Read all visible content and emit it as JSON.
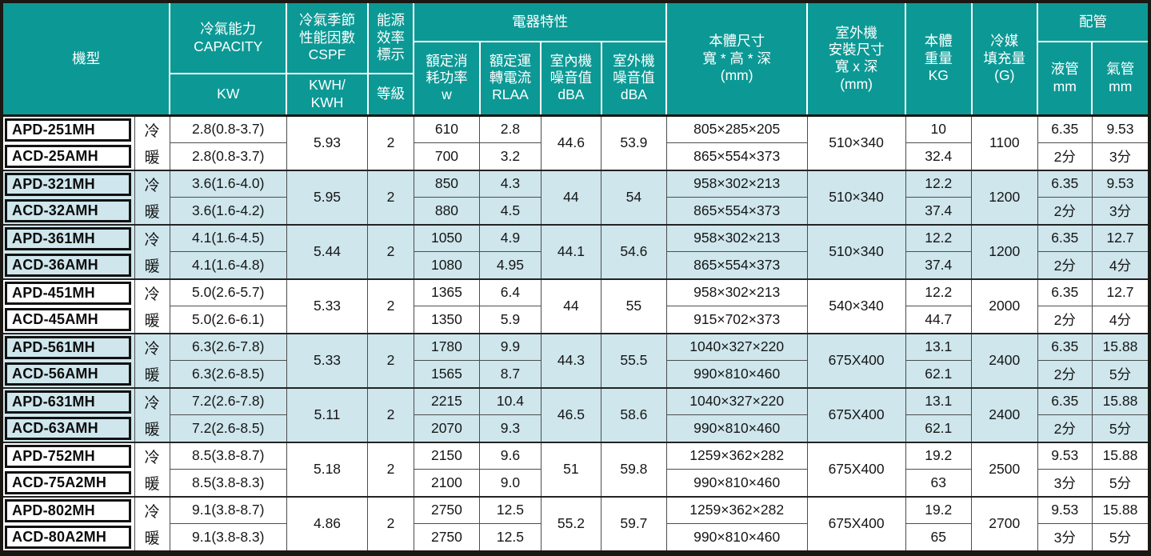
{
  "colors": {
    "header_bg": "#0c9995",
    "row_alt_bg": "#cee6ec",
    "outer_border": "#1b1713"
  },
  "header": {
    "model": "機型",
    "capacity": "冷氣能力\nCAPACITY",
    "capacity_unit": "KW",
    "cspf": "冷氣季節\n性能因數\nCSPF",
    "cspf_unit": "KWH/\nKWH",
    "energy": "能源\n效率\n標示",
    "energy_unit": "等級",
    "electrical": "電器特性",
    "power": "額定消\n耗功率\nw",
    "current": "額定運\n轉電流\nRLAA",
    "indoor_noise": "室內機\n噪音值\ndBA",
    "outdoor_noise": "室外機\n噪音值\ndBA",
    "body_size": "本體尺寸\n寬 * 高 * 深\n(mm)",
    "install_size": "室外機\n安裝尺寸\n寬 x 深\n(mm)",
    "weight": "本體\n重量\nKG",
    "refrigerant": "冷媒\n填充量\n(G)",
    "piping": "配管",
    "liquid": "液管\nmm",
    "gas": "氣管\nmm"
  },
  "groups": [
    {
      "shaded": false,
      "cspf": "5.93",
      "grade": "2",
      "indoor_noise": "44.6",
      "outdoor_noise": "53.9",
      "install_size": "510×340",
      "refrigerant": "1100",
      "rows": [
        {
          "model": "APD-251MH",
          "mode": "冷",
          "capacity": "2.8(0.8-3.7)",
          "power": "610",
          "current": "2.8",
          "size": "805×285×205",
          "weight": "10",
          "liquid": "6.35",
          "gas": "9.53"
        },
        {
          "model": "ACD-25AMH",
          "mode": "暖",
          "capacity": "2.8(0.8-3.7)",
          "power": "700",
          "current": "3.2",
          "size": "865×554×373",
          "weight": "32.4",
          "liquid": "2分",
          "gas": "3分"
        }
      ]
    },
    {
      "shaded": true,
      "cspf": "5.95",
      "grade": "2",
      "indoor_noise": "44",
      "outdoor_noise": "54",
      "install_size": "510×340",
      "refrigerant": "1200",
      "rows": [
        {
          "model": "APD-321MH",
          "mode": "冷",
          "capacity": "3.6(1.6-4.0)",
          "power": "850",
          "current": "4.3",
          "size": "958×302×213",
          "weight": "12.2",
          "liquid": "6.35",
          "gas": "9.53"
        },
        {
          "model": "ACD-32AMH",
          "mode": "暖",
          "capacity": "3.6(1.6-4.2)",
          "power": "880",
          "current": "4.5",
          "size": "865×554×373",
          "weight": "37.4",
          "liquid": "2分",
          "gas": "3分"
        }
      ]
    },
    {
      "shaded": true,
      "cspf": "5.44",
      "grade": "2",
      "indoor_noise": "44.1",
      "outdoor_noise": "54.6",
      "install_size": "510×340",
      "refrigerant": "1200",
      "rows": [
        {
          "model": "APD-361MH",
          "mode": "冷",
          "capacity": "4.1(1.6-4.5)",
          "power": "1050",
          "current": "4.9",
          "size": "958×302×213",
          "weight": "12.2",
          "liquid": "6.35",
          "gas": "12.7"
        },
        {
          "model": "ACD-36AMH",
          "mode": "暖",
          "capacity": "4.1(1.6-4.8)",
          "power": "1080",
          "current": "4.95",
          "size": "865×554×373",
          "weight": "37.4",
          "liquid": "2分",
          "gas": "4分"
        }
      ]
    },
    {
      "shaded": false,
      "cspf": "5.33",
      "grade": "2",
      "indoor_noise": "44",
      "outdoor_noise": "55",
      "install_size": "540×340",
      "refrigerant": "2000",
      "rows": [
        {
          "model": "APD-451MH",
          "mode": "冷",
          "capacity": "5.0(2.6-5.7)",
          "power": "1365",
          "current": "6.4",
          "size": "958×302×213",
          "weight": "12.2",
          "liquid": "6.35",
          "gas": "12.7"
        },
        {
          "model": "ACD-45AMH",
          "mode": "暖",
          "capacity": "5.0(2.6-6.1)",
          "power": "1350",
          "current": "5.9",
          "size": "915×702×373",
          "weight": "44.7",
          "liquid": "2分",
          "gas": "4分"
        }
      ]
    },
    {
      "shaded": true,
      "cspf": "5.33",
      "grade": "2",
      "indoor_noise": "44.3",
      "outdoor_noise": "55.5",
      "install_size": "675X400",
      "refrigerant": "2400",
      "rows": [
        {
          "model": "APD-561MH",
          "mode": "冷",
          "capacity": "6.3(2.6-7.8)",
          "power": "1780",
          "current": "9.9",
          "size": "1040×327×220",
          "weight": "13.1",
          "liquid": "6.35",
          "gas": "15.88"
        },
        {
          "model": "ACD-56AMH",
          "mode": "暖",
          "capacity": "6.3(2.6-8.5)",
          "power": "1565",
          "current": "8.7",
          "size": "990×810×460",
          "weight": "62.1",
          "liquid": "2分",
          "gas": "5分"
        }
      ]
    },
    {
      "shaded": true,
      "cspf": "5.11",
      "grade": "2",
      "indoor_noise": "46.5",
      "outdoor_noise": "58.6",
      "install_size": "675X400",
      "refrigerant": "2400",
      "rows": [
        {
          "model": "APD-631MH",
          "mode": "冷",
          "capacity": "7.2(2.6-7.8)",
          "power": "2215",
          "current": "10.4",
          "size": "1040×327×220",
          "weight": "13.1",
          "liquid": "6.35",
          "gas": "15.88"
        },
        {
          "model": "ACD-63AMH",
          "mode": "暖",
          "capacity": "7.2(2.6-8.5)",
          "power": "2070",
          "current": "9.3",
          "size": "990×810×460",
          "weight": "62.1",
          "liquid": "2分",
          "gas": "5分"
        }
      ]
    },
    {
      "shaded": false,
      "cspf": "5.18",
      "grade": "2",
      "indoor_noise": "51",
      "outdoor_noise": "59.8",
      "install_size": "675X400",
      "refrigerant": "2500",
      "rows": [
        {
          "model": "APD-752MH",
          "mode": "冷",
          "capacity": "8.5(3.8-8.7)",
          "power": "2150",
          "current": "9.6",
          "size": "1259×362×282",
          "weight": "19.2",
          "liquid": "9.53",
          "gas": "15.88"
        },
        {
          "model": "ACD-75A2MH",
          "mode": "暖",
          "capacity": "8.5(3.8-8.3)",
          "power": "2100",
          "current": "9.0",
          "size": "990×810×460",
          "weight": "63",
          "liquid": "3分",
          "gas": "5分"
        }
      ]
    },
    {
      "shaded": false,
      "cspf": "4.86",
      "grade": "2",
      "indoor_noise": "55.2",
      "outdoor_noise": "59.7",
      "install_size": "675X400",
      "refrigerant": "2700",
      "rows": [
        {
          "model": "APD-802MH",
          "mode": "冷",
          "capacity": "9.1(3.8-8.7)",
          "power": "2750",
          "current": "12.5",
          "size": "1259×362×282",
          "weight": "19.2",
          "liquid": "9.53",
          "gas": "15.88"
        },
        {
          "model": "ACD-80A2MH",
          "mode": "暖",
          "capacity": "9.1(3.8-8.3)",
          "power": "2750",
          "current": "12.5",
          "size": "990×810×460",
          "weight": "65",
          "liquid": "3分",
          "gas": "5分"
        }
      ]
    }
  ]
}
